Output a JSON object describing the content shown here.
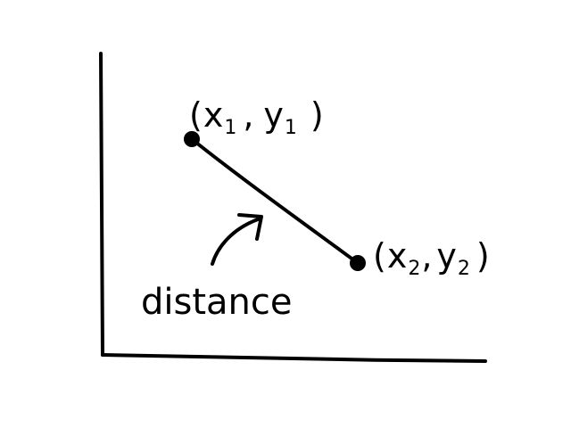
{
  "points": {
    "p1": {
      "label": "(",
      "x": "x",
      "x_sub": "1",
      "sep": ",",
      "y": "y",
      "y_sub": "1",
      "close": ")"
    },
    "p2": {
      "label": "(",
      "x": "x",
      "x_sub": "2",
      "sep": ",",
      "y": "y",
      "y_sub": "2",
      "close": ")"
    }
  },
  "annotation": {
    "text": "distance"
  },
  "colors": {
    "ink": "#000000",
    "background": "#ffffff"
  }
}
